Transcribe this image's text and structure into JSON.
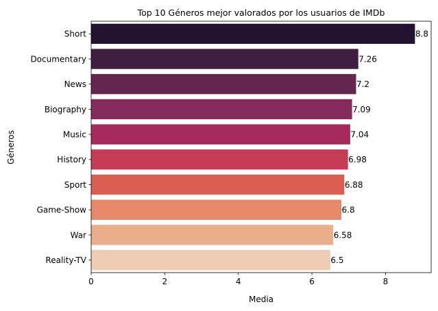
{
  "chart_data": {
    "type": "bar",
    "orientation": "horizontal",
    "title": "Top 10 Géneros mejor valorados por los usuarios de IMDb",
    "xlabel": "Media",
    "ylabel": "Géneros",
    "categories": [
      "Short",
      "Documentary",
      "News",
      "Biography",
      "Music",
      "History",
      "Sport",
      "Game-Show",
      "War",
      "Reality-TV"
    ],
    "values": [
      8.8,
      7.26,
      7.2,
      7.09,
      7.04,
      6.98,
      6.88,
      6.8,
      6.58,
      6.5
    ],
    "value_labels": [
      "8.8",
      "7.26",
      "7.2",
      "7.09",
      "7.04",
      "6.98",
      "6.88",
      "6.8",
      "6.58",
      "6.5"
    ],
    "xlim": [
      0,
      9.24
    ],
    "xticks": [
      0,
      2,
      4,
      6,
      8
    ],
    "xtick_labels": [
      "0",
      "2",
      "4",
      "6",
      "8"
    ],
    "grid": false,
    "colors": [
      "#221330",
      "#3f1f40",
      "#63274e",
      "#852a5a",
      "#a6295b",
      "#c63b55",
      "#dc5d52",
      "#e5896a",
      "#eaae8c",
      "#efccb5"
    ]
  }
}
